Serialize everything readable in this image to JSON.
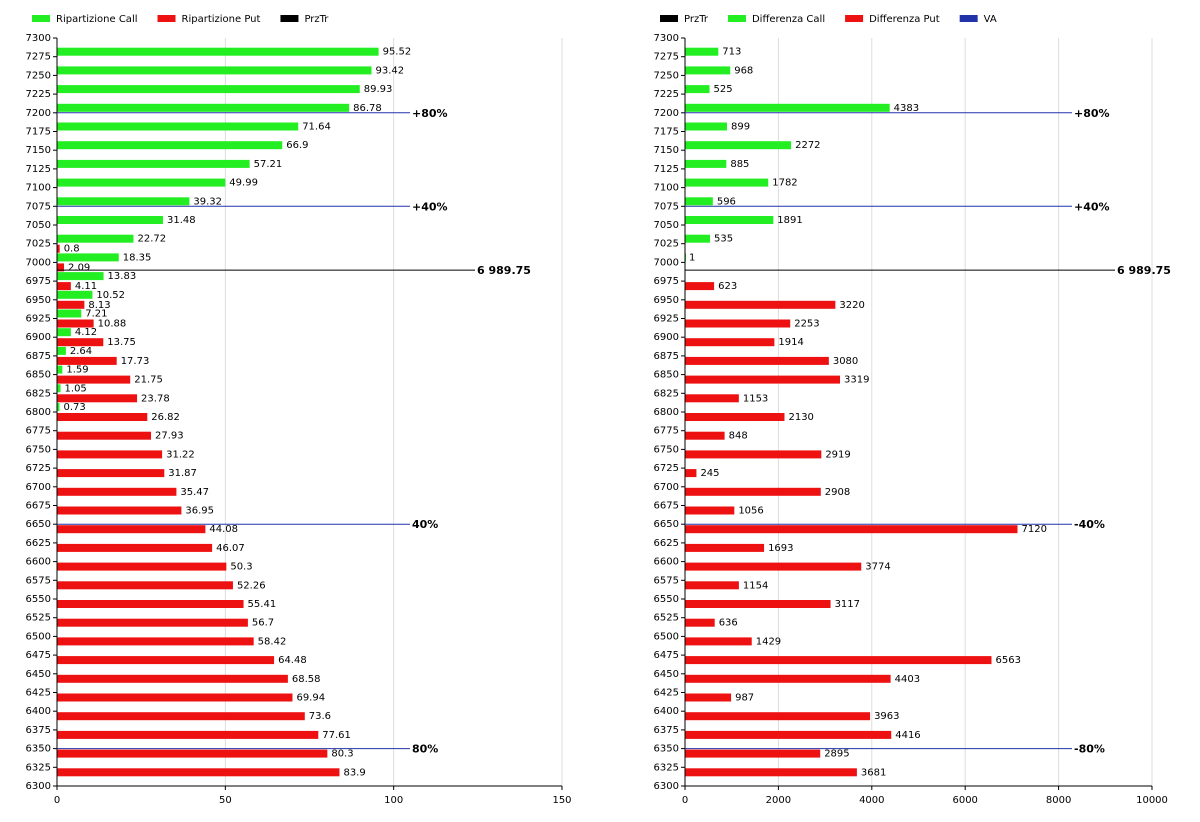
{
  "chart_data": [
    {
      "type": "hbar",
      "y": [
        7275,
        7250,
        7225,
        7200,
        7175,
        7150,
        7125,
        7100,
        7075,
        7050,
        7025,
        7000,
        6975,
        6950,
        6925,
        6900,
        6875,
        6850,
        6825,
        6800,
        6775,
        6750,
        6725,
        6700,
        6675,
        6650,
        6625,
        6600,
        6575,
        6550,
        6525,
        6500,
        6475,
        6450,
        6425,
        6400,
        6375,
        6350,
        6325
      ],
      "series": [
        {
          "name": "Ripartizione Call",
          "color": "#22ee22",
          "values": [
            95.52,
            93.42,
            89.93,
            86.78,
            71.64,
            66.9,
            57.21,
            49.99,
            39.32,
            31.48,
            22.72,
            18.35,
            13.83,
            10.52,
            7.21,
            4.12,
            2.64,
            1.59,
            1.05,
            0.73,
            null,
            null,
            null,
            null,
            null,
            null,
            null,
            null,
            null,
            null,
            null,
            null,
            null,
            null,
            null,
            null,
            null,
            null,
            null
          ]
        },
        {
          "name": "Ripartizione Put",
          "color": "#ee1111",
          "values": [
            null,
            null,
            null,
            null,
            null,
            null,
            null,
            null,
            null,
            null,
            0.8,
            2.09,
            4.11,
            8.13,
            10.88,
            13.75,
            17.73,
            21.75,
            23.78,
            26.82,
            27.93,
            31.22,
            31.87,
            35.47,
            36.95,
            44.08,
            46.07,
            50.3,
            52.26,
            55.41,
            56.7,
            58.42,
            64.48,
            68.58,
            69.94,
            73.6,
            77.61,
            80.3,
            83.9
          ]
        }
      ],
      "price_line": {
        "name": "PrzTr",
        "color": "#000000",
        "value": 6989.75,
        "label": "6 989.75"
      },
      "va_lines": {
        "color": "#2233aa",
        "lines": [
          {
            "value": 7200,
            "label": "+80%"
          },
          {
            "value": 7075,
            "label": "+40%"
          },
          {
            "value": 6650,
            "label": "40%"
          },
          {
            "value": 6350,
            "label": "80%"
          }
        ]
      },
      "xlim": [
        0,
        150
      ],
      "xticks": [
        0,
        50,
        100,
        150
      ],
      "ylim": [
        6300,
        7300
      ],
      "yticks": [
        7300,
        7275,
        7250,
        7225,
        7200,
        7175,
        7150,
        7125,
        7100,
        7075,
        7050,
        7025,
        7000,
        6975,
        6950,
        6925,
        6900,
        6875,
        6850,
        6825,
        6800,
        6775,
        6750,
        6725,
        6700,
        6675,
        6650,
        6625,
        6600,
        6575,
        6550,
        6525,
        6500,
        6475,
        6450,
        6425,
        6400,
        6375,
        6350,
        6325,
        6300
      ],
      "grid": true
    },
    {
      "type": "hbar",
      "y": [
        7275,
        7250,
        7225,
        7200,
        7175,
        7150,
        7125,
        7100,
        7075,
        7050,
        7025,
        7000,
        6975,
        6950,
        6925,
        6900,
        6875,
        6850,
        6825,
        6800,
        6775,
        6750,
        6725,
        6700,
        6675,
        6650,
        6625,
        6600,
        6575,
        6550,
        6525,
        6500,
        6475,
        6450,
        6425,
        6400,
        6375,
        6350,
        6325
      ],
      "series": [
        {
          "name": "Differenza Call",
          "color": "#22ee22",
          "values": [
            713,
            968,
            525,
            4383,
            899,
            2272,
            885,
            1782,
            596,
            1891,
            535,
            1,
            null,
            null,
            null,
            null,
            null,
            null,
            null,
            null,
            null,
            null,
            null,
            null,
            null,
            null,
            null,
            null,
            null,
            null,
            null,
            null,
            null,
            null,
            null,
            null,
            null,
            null,
            null
          ]
        },
        {
          "name": "Differenza Put",
          "color": "#ee1111",
          "values": [
            null,
            null,
            null,
            null,
            null,
            null,
            null,
            null,
            null,
            null,
            null,
            null,
            623,
            3220,
            2253,
            1914,
            3080,
            3319,
            1153,
            2130,
            848,
            2919,
            245,
            2908,
            1056,
            7120,
            1693,
            3774,
            1154,
            3117,
            636,
            1429,
            6563,
            4403,
            987,
            3963,
            4416,
            2895,
            3681
          ]
        }
      ],
      "price_line": {
        "name": "PrzTr",
        "color": "#000000",
        "value": 6989.75,
        "label": "6 989.75"
      },
      "va_lines": {
        "name": "VA",
        "color": "#2233aa",
        "lines": [
          {
            "value": 7200,
            "label": "+80%"
          },
          {
            "value": 7075,
            "label": "+40%"
          },
          {
            "value": 6650,
            "label": "-40%"
          },
          {
            "value": 6350,
            "label": "-80%"
          }
        ]
      },
      "xlim": [
        0,
        10000
      ],
      "xticks": [
        0,
        2000,
        4000,
        6000,
        8000,
        10000
      ],
      "ylim": [
        6300,
        7300
      ],
      "yticks": [
        7300,
        7275,
        7250,
        7225,
        7200,
        7175,
        7150,
        7125,
        7100,
        7075,
        7050,
        7025,
        7000,
        6975,
        6950,
        6925,
        6900,
        6875,
        6850,
        6825,
        6800,
        6775,
        6750,
        6725,
        6700,
        6675,
        6650,
        6625,
        6600,
        6575,
        6550,
        6525,
        6500,
        6475,
        6450,
        6425,
        6400,
        6375,
        6350,
        6325,
        6300
      ],
      "grid": true
    }
  ]
}
